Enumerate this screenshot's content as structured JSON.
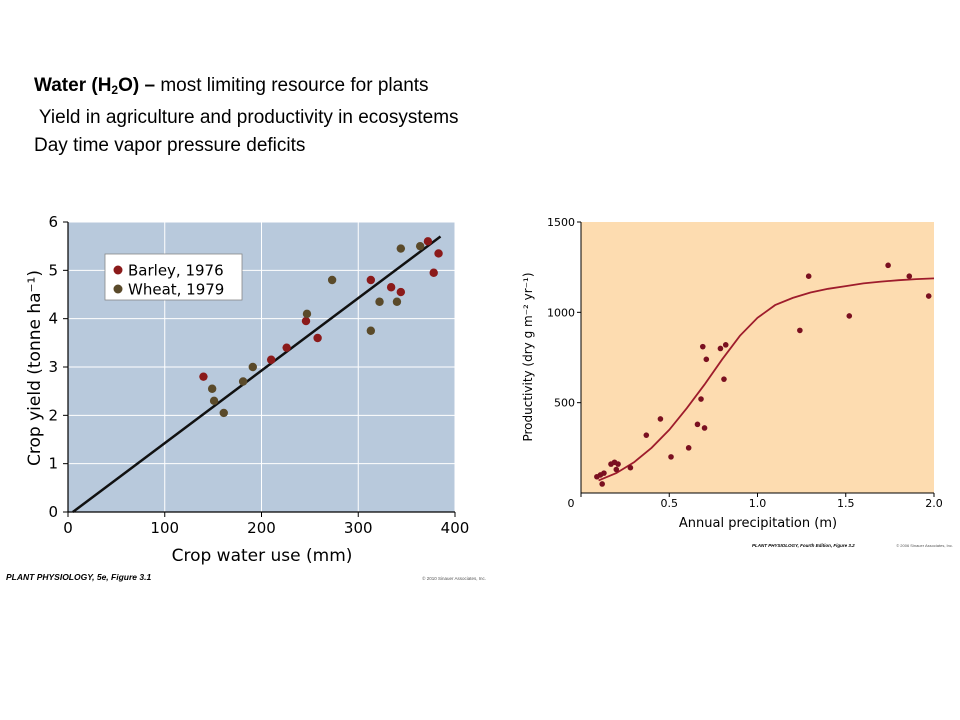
{
  "slide_text": {
    "heading_bold_prefix": "Water (H",
    "heading_subscript": "2",
    "heading_bold_suffix": "O) –",
    "heading_rest": " most limiting resource for plants",
    "line2": " Yield in agriculture and productivity in ecosystems",
    "line3": "Day time vapor pressure deficits"
  },
  "chart_data": [
    {
      "type": "scatter",
      "xlabel": "Crop water use (mm)",
      "ylabel": "Crop yield (tonne ha⁻¹)",
      "xlim": [
        0,
        400
      ],
      "ylim": [
        0,
        6
      ],
      "x_ticks": [
        "0",
        "100",
        "200",
        "300",
        "400"
      ],
      "y_ticks": [
        "0",
        "1",
        "2",
        "3",
        "4",
        "5",
        "6"
      ],
      "grid": true,
      "legend_position": "top-left",
      "background_color": "#b8c9dc",
      "caption": "PLANT PHYSIOLOGY, 5e, Figure 3.1",
      "copyright": "© 2010 Sinauer Associates, Inc.",
      "trend_line": {
        "x": [
          5,
          385
        ],
        "y": [
          0,
          5.7
        ],
        "color": "#111111"
      },
      "series": [
        {
          "name": "Barley, 1976",
          "color": "#8b1a1a",
          "points": [
            [
              140,
              2.8
            ],
            [
              210,
              3.15
            ],
            [
              226,
              3.4
            ],
            [
              246,
              3.95
            ],
            [
              258,
              3.6
            ],
            [
              313,
              4.8
            ],
            [
              334,
              4.65
            ],
            [
              344,
              4.55
            ],
            [
              372,
              5.6
            ],
            [
              378,
              4.95
            ],
            [
              383,
              5.35
            ]
          ]
        },
        {
          "name": "Wheat, 1979",
          "color": "#5a4a2a",
          "points": [
            [
              149,
              2.55
            ],
            [
              151,
              2.3
            ],
            [
              161,
              2.05
            ],
            [
              181,
              2.7
            ],
            [
              191,
              3.0
            ],
            [
              247,
              4.1
            ],
            [
              273,
              4.8
            ],
            [
              313,
              3.75
            ],
            [
              322,
              4.35
            ],
            [
              340,
              4.35
            ],
            [
              344,
              5.45
            ],
            [
              364,
              5.5
            ]
          ]
        }
      ]
    },
    {
      "type": "scatter",
      "xlabel": "Annual precipitation (m)",
      "ylabel": "Productivity (dry g m⁻² yr⁻¹)",
      "xlim": [
        0,
        2.0
      ],
      "ylim": [
        0,
        1500
      ],
      "x_ticks": [
        "0",
        "0.5",
        "1.0",
        "1.5",
        "2.0"
      ],
      "y_ticks": [
        "500",
        "1000",
        "1500"
      ],
      "grid": false,
      "background_color": "#fddcb0",
      "caption": "PLANT PHYSIOLOGY, Fourth Edition, Figure 3.2",
      "copyright": "© 2006 Sinauer Associates, Inc.",
      "curve_color": "#9e1c2c",
      "curve": [
        [
          0.1,
          70
        ],
        [
          0.2,
          110
        ],
        [
          0.3,
          170
        ],
        [
          0.4,
          250
        ],
        [
          0.5,
          350
        ],
        [
          0.6,
          470
        ],
        [
          0.7,
          600
        ],
        [
          0.8,
          740
        ],
        [
          0.9,
          870
        ],
        [
          1.0,
          970
        ],
        [
          1.1,
          1040
        ],
        [
          1.2,
          1080
        ],
        [
          1.3,
          1110
        ],
        [
          1.4,
          1130
        ],
        [
          1.5,
          1145
        ],
        [
          1.6,
          1160
        ],
        [
          1.7,
          1170
        ],
        [
          1.8,
          1178
        ],
        [
          1.9,
          1184
        ],
        [
          2.0,
          1188
        ]
      ],
      "points_color": "#7a1020",
      "points": [
        [
          0.09,
          90
        ],
        [
          0.11,
          100
        ],
        [
          0.13,
          110
        ],
        [
          0.12,
          50
        ],
        [
          0.17,
          160
        ],
        [
          0.19,
          170
        ],
        [
          0.2,
          130
        ],
        [
          0.21,
          160
        ],
        [
          0.28,
          140
        ],
        [
          0.37,
          320
        ],
        [
          0.45,
          410
        ],
        [
          0.51,
          200
        ],
        [
          0.61,
          250
        ],
        [
          0.66,
          380
        ],
        [
          0.68,
          520
        ],
        [
          0.69,
          810
        ],
        [
          0.71,
          740
        ],
        [
          0.7,
          360
        ],
        [
          0.79,
          800
        ],
        [
          0.81,
          630
        ],
        [
          0.82,
          820
        ],
        [
          1.24,
          900
        ],
        [
          1.29,
          1200
        ],
        [
          1.52,
          980
        ],
        [
          1.74,
          1260
        ],
        [
          1.86,
          1200
        ],
        [
          1.97,
          1090
        ]
      ]
    }
  ]
}
